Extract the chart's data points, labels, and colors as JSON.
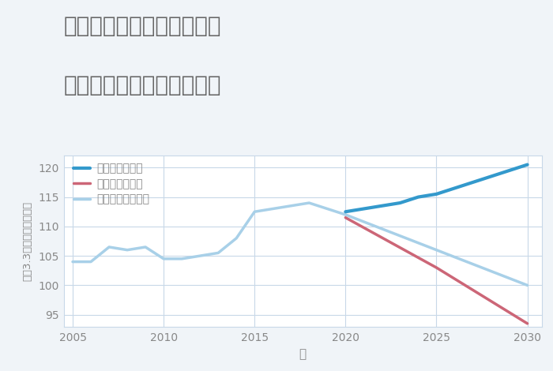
{
  "title_line1": "岐阜県郡上市大和町徳永の",
  "title_line2": "中古マンションの価格推移",
  "xlabel": "年",
  "ylabel": "坪（3.3㎡）単価（万円）",
  "background_color": "#f0f4f8",
  "plot_background_color": "#ffffff",
  "grid_color": "#c8d8e8",
  "title_color": "#666666",
  "axis_color": "#888888",
  "ylim": [
    93,
    122
  ],
  "yticks": [
    95,
    100,
    105,
    110,
    115,
    120
  ],
  "xticks": [
    2005,
    2010,
    2015,
    2020,
    2025,
    2030
  ],
  "normal_scenario": {
    "years": [
      2005,
      2006,
      2007,
      2008,
      2009,
      2010,
      2011,
      2012,
      2013,
      2014,
      2015,
      2016,
      2017,
      2018,
      2019,
      2020
    ],
    "values": [
      104,
      104,
      106.5,
      106,
      106.5,
      104.5,
      104.5,
      105,
      105.5,
      108,
      112.5,
      113,
      113.5,
      114,
      113,
      112
    ],
    "color": "#a8d0e8",
    "linewidth": 2.5,
    "label": "ノーマルシナリオ"
  },
  "normal_future": {
    "years": [
      2020,
      2025,
      2030
    ],
    "values": [
      112,
      106,
      100
    ],
    "color": "#a8d0e8",
    "linewidth": 2.5
  },
  "good_scenario": {
    "years": [
      2020,
      2021,
      2022,
      2023,
      2024,
      2025,
      2026,
      2027,
      2028,
      2029,
      2030
    ],
    "values": [
      112.5,
      113,
      113.5,
      114,
      115,
      115.5,
      116.5,
      117.5,
      118.5,
      119.5,
      120.5
    ],
    "color": "#3399cc",
    "linewidth": 3.0,
    "label": "グッドシナリオ"
  },
  "bad_scenario": {
    "years": [
      2020,
      2025,
      2030
    ],
    "values": [
      111.5,
      103,
      93.5
    ],
    "color": "#cc6677",
    "linewidth": 2.5,
    "label": "バッドシナリオ"
  },
  "legend_fontsize": 10,
  "title_fontsize": 20
}
